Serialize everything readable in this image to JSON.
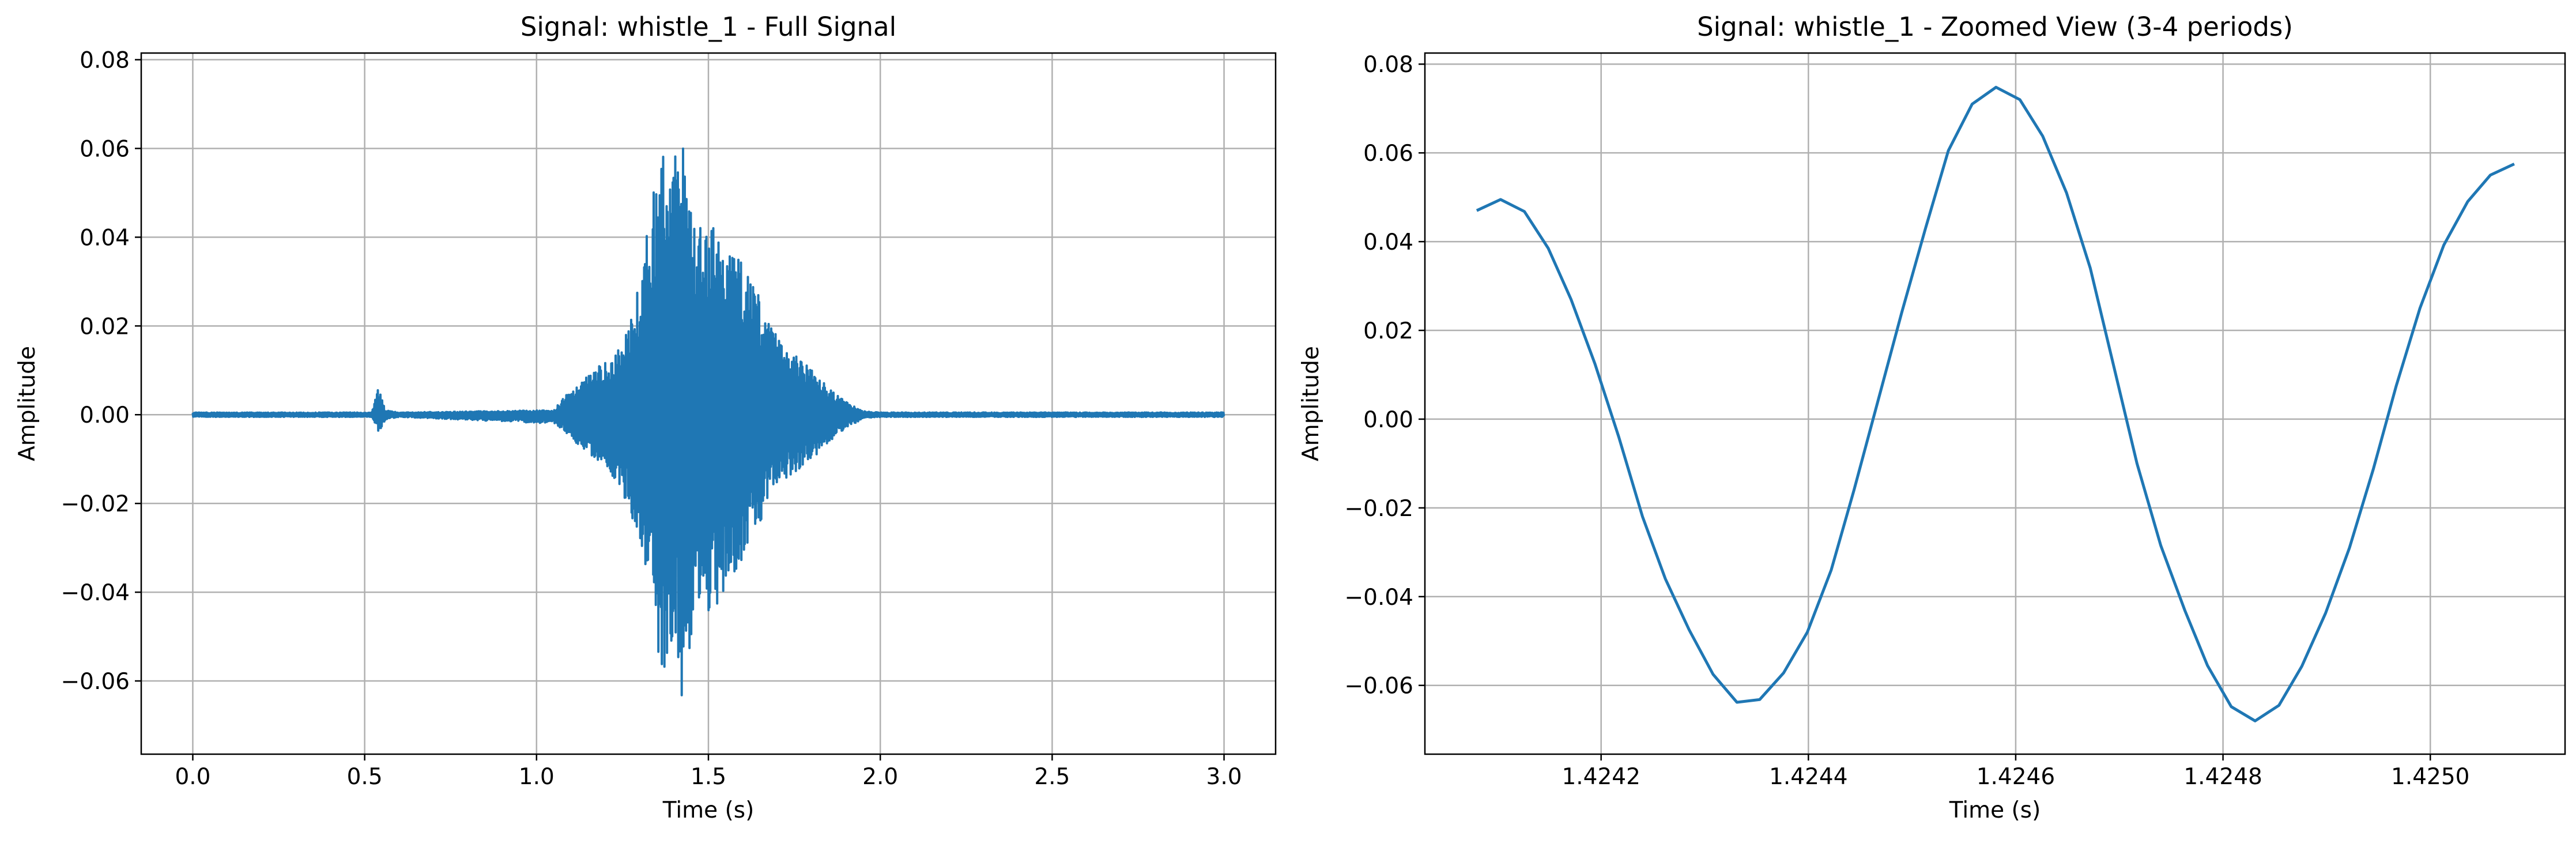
{
  "colors": {
    "line": "#1f77b4",
    "grid": "#b0b0b0",
    "axes": "#000000"
  },
  "chart_data": [
    {
      "type": "line",
      "title": "Signal: whistle_1 - Full Signal",
      "xlabel": "Time (s)",
      "ylabel": "Amplitude",
      "xlim": [
        -0.15,
        3.15
      ],
      "ylim": [
        -0.0765,
        0.0815
      ],
      "grid": true,
      "legend": "none",
      "xticks": [
        0.0,
        0.5,
        1.0,
        1.5,
        2.0,
        2.5,
        3.0
      ],
      "xtick_labels": [
        "0.0",
        "0.5",
        "1.0",
        "1.5",
        "2.0",
        "2.5",
        "3.0"
      ],
      "yticks": [
        -0.06,
        -0.04,
        -0.02,
        0.0,
        0.02,
        0.04,
        0.06,
        0.08
      ],
      "ytick_labels": [
        "−0.06",
        "−0.04",
        "−0.02",
        "0.00",
        "0.02",
        "0.04",
        "0.06",
        "0.08"
      ],
      "envelope": {
        "x": [
          0.0,
          0.52,
          0.54,
          0.56,
          0.6,
          1.05,
          1.08,
          1.15,
          1.2,
          1.25,
          1.3,
          1.33,
          1.36,
          1.38,
          1.4,
          1.42,
          1.44,
          1.46,
          1.5,
          1.55,
          1.6,
          1.65,
          1.7,
          1.75,
          1.8,
          1.85,
          1.9,
          1.95,
          2.0,
          3.0
        ],
        "upper": [
          0.0005,
          0.0005,
          0.006,
          0.001,
          0.0005,
          0.001,
          0.004,
          0.009,
          0.012,
          0.016,
          0.03,
          0.047,
          0.06,
          0.058,
          0.056,
          0.075,
          0.05,
          0.042,
          0.044,
          0.04,
          0.035,
          0.027,
          0.018,
          0.014,
          0.01,
          0.006,
          0.003,
          0.0008,
          0.0005,
          0.0005
        ],
        "lower": [
          -0.0005,
          -0.0005,
          -0.004,
          -0.001,
          -0.0005,
          -0.002,
          -0.004,
          -0.009,
          -0.012,
          -0.018,
          -0.028,
          -0.04,
          -0.062,
          -0.06,
          -0.05,
          -0.069,
          -0.055,
          -0.048,
          -0.046,
          -0.04,
          -0.032,
          -0.024,
          -0.016,
          -0.013,
          -0.01,
          -0.006,
          -0.003,
          -0.0008,
          -0.0005,
          -0.0005
        ]
      }
    },
    {
      "type": "line",
      "title": "Signal: whistle_1 - Zoomed View (3-4 periods)",
      "xlabel": "Time (s)",
      "ylabel": "Amplitude",
      "xlim": [
        1.42403,
        1.42513
      ],
      "ylim": [
        -0.0755,
        0.0825
      ],
      "grid": true,
      "legend": "none",
      "xticks": [
        1.4242,
        1.4244,
        1.4246,
        1.4248,
        1.425
      ],
      "xtick_labels": [
        "1.4242",
        "1.4244",
        "1.4246",
        "1.4248",
        "1.4250"
      ],
      "yticks": [
        -0.06,
        -0.04,
        -0.02,
        0.0,
        0.02,
        0.04,
        0.06,
        0.08
      ],
      "ytick_labels": [
        "−0.06",
        "−0.04",
        "−0.02",
        "0.00",
        "0.02",
        "0.04",
        "0.06",
        "0.08"
      ],
      "x": [
        1.42408,
        1.424103,
        1.424126,
        1.424149,
        1.424171,
        1.424194,
        1.424217,
        1.42424,
        1.424262,
        1.424285,
        1.424308,
        1.424331,
        1.424353,
        1.424376,
        1.424399,
        1.424422,
        1.424444,
        1.424467,
        1.42449,
        1.424513,
        1.424535,
        1.424558,
        1.424581,
        1.424604,
        1.424626,
        1.424649,
        1.424672,
        1.424694,
        1.424717,
        1.42474,
        1.424763,
        1.424785,
        1.424808,
        1.424831,
        1.424854,
        1.424876,
        1.424899,
        1.424922,
        1.424945,
        1.424967,
        1.42499,
        1.425013,
        1.425036,
        1.425058,
        1.425081
      ],
      "y": [
        0.047,
        0.0495,
        0.0468,
        0.0385,
        0.027,
        0.0125,
        -0.004,
        -0.022,
        -0.036,
        -0.0475,
        -0.0575,
        -0.0638,
        -0.0632,
        -0.0572,
        -0.048,
        -0.034,
        -0.016,
        0.004,
        0.024,
        0.043,
        0.0605,
        0.071,
        0.0748,
        0.072,
        0.0638,
        0.051,
        0.034,
        0.0125,
        -0.01,
        -0.0285,
        -0.043,
        -0.0555,
        -0.0648,
        -0.068,
        -0.0645,
        -0.0557,
        -0.0437,
        -0.029,
        -0.0113,
        0.0074,
        0.025,
        0.0392,
        0.049,
        0.055,
        0.0575
      ]
    }
  ]
}
